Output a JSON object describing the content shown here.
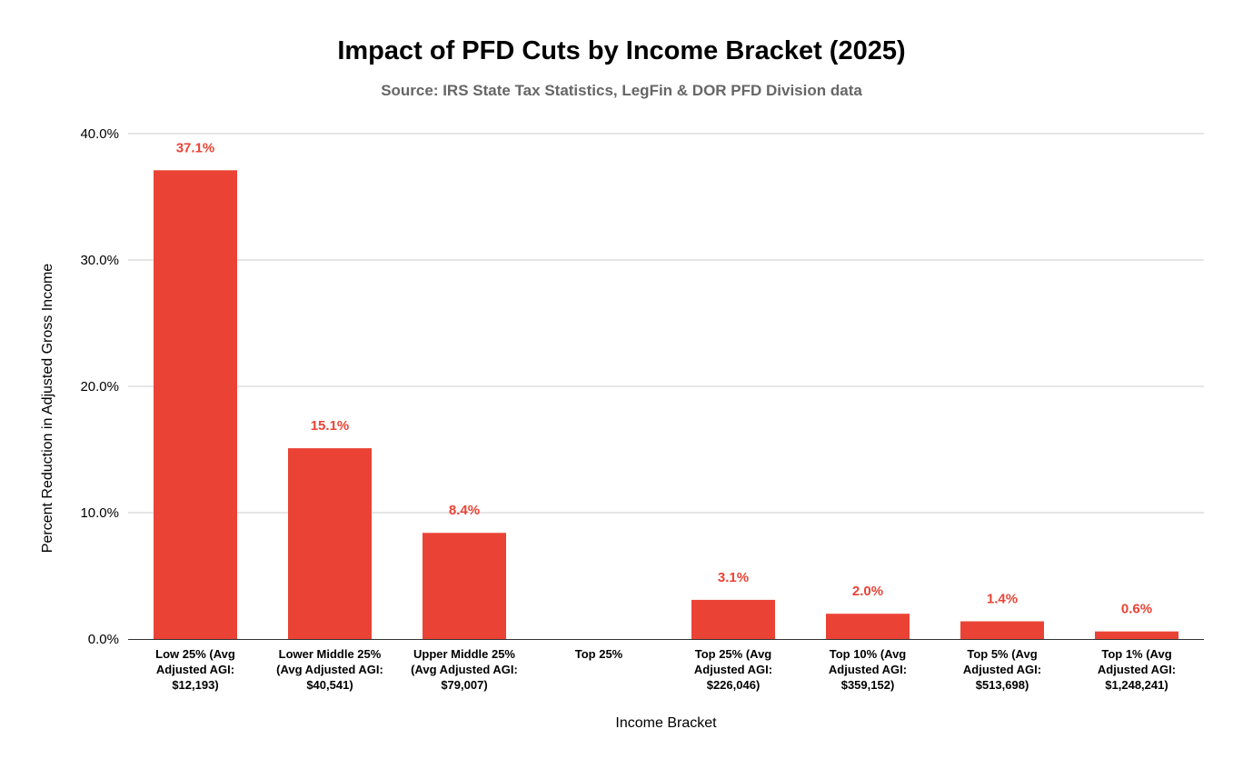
{
  "chart_data": {
    "type": "bar",
    "title": "Impact of PFD Cuts by Income Bracket (2025)",
    "subtitle": "Source: IRS State Tax Statistics, LegFin & DOR PFD Division data",
    "xlabel": "Income Bracket",
    "ylabel": "Percent Reduction in Adjusted Gross Income",
    "ylim": [
      0,
      40
    ],
    "yticks": [
      "0.0%",
      "10.0%",
      "20.0%",
      "30.0%",
      "40.0%"
    ],
    "ytick_values": [
      0,
      10,
      20,
      30,
      40
    ],
    "grid": true,
    "bar_color": "#ea4335",
    "label_color": "#ea4335",
    "categories": [
      [
        "Low 25% (Avg",
        "Adjusted AGI:",
        "$12,193)"
      ],
      [
        "Lower Middle 25%",
        "(Avg Adjusted AGI:",
        "$40,541)"
      ],
      [
        "Upper Middle 25%",
        "(Avg Adjusted AGI:",
        "$79,007)"
      ],
      [
        "Top 25%"
      ],
      [
        "Top 25% (Avg",
        "Adjusted AGI:",
        "$226,046)"
      ],
      [
        "Top 10% (Avg",
        "Adjusted AGI:",
        "$359,152)"
      ],
      [
        "Top 5% (Avg",
        "Adjusted AGI:",
        "$513,698)"
      ],
      [
        "Top 1% (Avg",
        "Adjusted AGI:",
        "$1,248,241)"
      ]
    ],
    "values": [
      37.1,
      15.1,
      8.4,
      null,
      3.1,
      2.0,
      1.4,
      0.6
    ],
    "data_labels": [
      "37.1%",
      "15.1%",
      "8.4%",
      "",
      "3.1%",
      "2.0%",
      "1.4%",
      "0.6%"
    ]
  }
}
